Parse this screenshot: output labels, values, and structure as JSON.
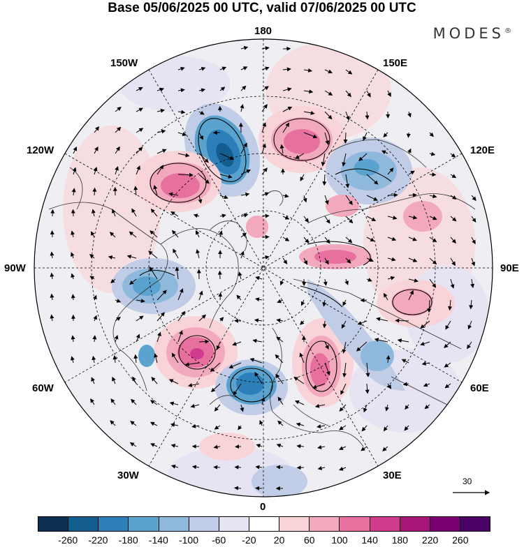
{
  "title": "Base 05/06/2025 00 UTC, valid 07/06/2025 00 UTC",
  "brand": "MODES",
  "brand_mark": "®",
  "longitude_labels": {
    "top": "180",
    "bottom": "0",
    "left": "90W",
    "right": "90E",
    "nw_150": "150W",
    "ne_150": "150E",
    "nw_120": "120W",
    "ne_120": "120E",
    "sw_60": "60W",
    "se_60": "60E",
    "sw_30": "30W",
    "se_30": "30E"
  },
  "vector_reference": {
    "label": "30"
  },
  "colorbar": {
    "colors": [
      "#0d2f52",
      "#135d8f",
      "#2c7fb8",
      "#5aa3cf",
      "#8fb9dc",
      "#c1cce6",
      "#e6e4f2",
      "#ffffff",
      "#f8d4d9",
      "#f3a9bd",
      "#e8709f",
      "#cf3c8e",
      "#a81679",
      "#7a0073",
      "#4b0066"
    ],
    "tick_labels": [
      "-260",
      "-220",
      "-180",
      "-140",
      "-100",
      "-60",
      "-20",
      "20",
      "60",
      "100",
      "140",
      "180",
      "220",
      "260"
    ]
  },
  "anomaly_centers": [
    {
      "lon_lat": "150W-160W 60N",
      "value": -240
    },
    {
      "lon_lat": "170E 55N",
      "value": 170
    },
    {
      "lon_lat": "130W 55N",
      "value": 180
    },
    {
      "lon_lat": "140E 65N",
      "value": -120
    },
    {
      "lon_lat": "80W 70N",
      "value": -130
    },
    {
      "lon_lat": "45W 55N",
      "value": 190
    },
    {
      "lon_lat": "15W 50N",
      "value": -200
    },
    {
      "lon_lat": "20E 55N",
      "value": 160
    },
    {
      "lon_lat": "100E 60N",
      "value": 110
    },
    {
      "lon_lat": "60E 60N",
      "value": -110
    },
    {
      "lon_lat": "120E 45N",
      "value": 80
    }
  ]
}
